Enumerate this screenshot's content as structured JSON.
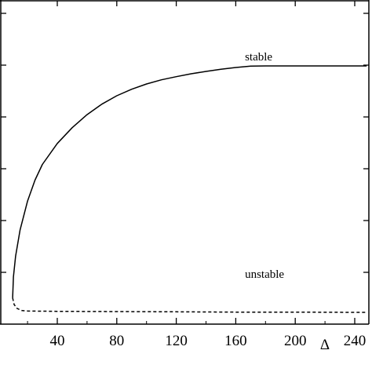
{
  "chart_data": {
    "type": "line",
    "xlabel": "Δ",
    "ylabel": "",
    "xlim": [
      0,
      248
    ],
    "x_ticks": [
      40,
      80,
      120,
      160,
      200,
      240
    ],
    "x_tick_labels": [
      "40",
      "80",
      "120",
      "160",
      "200",
      "240"
    ],
    "y_tick_count": 6,
    "grid": false,
    "series": [
      {
        "name": "stable",
        "style": "solid",
        "color": "#000000",
        "x": [
          10,
          10.5,
          12,
          15,
          20,
          25,
          30,
          40,
          50,
          60,
          70,
          80,
          90,
          100,
          110,
          120,
          130,
          140,
          150,
          160,
          170,
          180,
          200,
          220,
          240,
          248
        ],
        "y": [
          0.1,
          0.18,
          0.26,
          0.36,
          0.47,
          0.55,
          0.61,
          0.69,
          0.75,
          0.8,
          0.84,
          0.872,
          0.897,
          0.917,
          0.933,
          0.945,
          0.956,
          0.965,
          0.973,
          0.98,
          0.985,
          0.986,
          0.986,
          0.986,
          0.986,
          0.986
        ]
      },
      {
        "name": "unstable",
        "style": "dashed",
        "color": "#000000",
        "x": [
          10,
          11,
          13,
          16,
          20,
          40,
          80,
          120,
          160,
          200,
          240,
          248
        ],
        "y": [
          0.1,
          0.075,
          0.06,
          0.052,
          0.05,
          0.049,
          0.048,
          0.047,
          0.046,
          0.046,
          0.045,
          0.045
        ]
      }
    ],
    "annotations": [
      {
        "text": "stable",
        "x": 182,
        "y": 1.02
      },
      {
        "text": "unstable",
        "x": 182,
        "y": 0.08
      }
    ]
  }
}
